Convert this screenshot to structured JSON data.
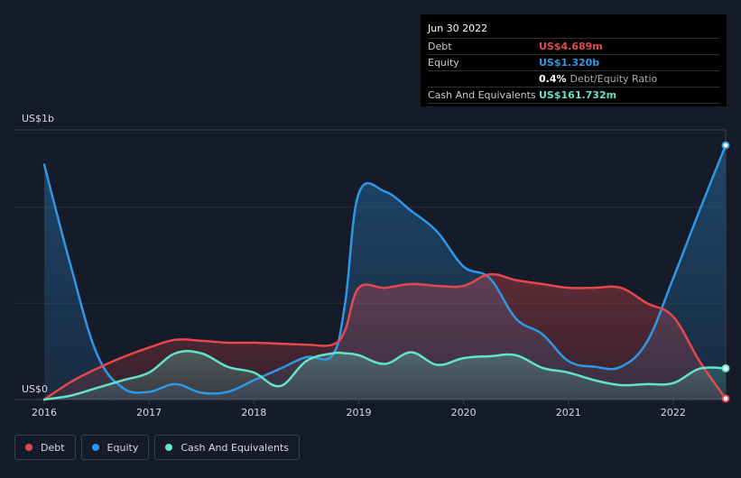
{
  "tooltip": {
    "date": "Jun 30 2022",
    "debt_label": "Debt",
    "debt_value": "US$4.689m",
    "equity_label": "Equity",
    "equity_value": "US$1.320b",
    "ratio_pct": "0.4%",
    "ratio_label": "Debt/Equity Ratio",
    "cash_label": "Cash And Equivalents",
    "cash_value": "US$161.732m"
  },
  "legend": {
    "debt": "Debt",
    "equity": "Equity",
    "cash": "Cash And Equivalents"
  },
  "colors": {
    "debt": "#e4484e",
    "equity": "#2f97e6",
    "cash": "#63e3c7",
    "background": "#151b28"
  },
  "chart_data": {
    "type": "area",
    "y_axis_top_label": "US$1b",
    "y_axis_bottom_label": "US$0",
    "ylim": [
      0,
      1.4
    ],
    "xlim": [
      2016,
      2022.5
    ],
    "x_ticks": [
      "2016",
      "2017",
      "2018",
      "2019",
      "2020",
      "2021",
      "2022"
    ],
    "grid": true,
    "legend_position": "bottom-left",
    "series": [
      {
        "name": "Debt",
        "x": [
          2016,
          2016.25,
          2016.5,
          2016.75,
          2017,
          2017.25,
          2017.5,
          2017.75,
          2018,
          2018.25,
          2018.5,
          2018.75,
          2018.87,
          2019,
          2019.25,
          2019.5,
          2019.75,
          2020,
          2020.25,
          2020.5,
          2020.75,
          2021,
          2021.25,
          2021.5,
          2021.75,
          2022,
          2022.25,
          2022.5
        ],
        "values": [
          0,
          0.09,
          0.16,
          0.22,
          0.27,
          0.31,
          0.305,
          0.295,
          0.295,
          0.29,
          0.285,
          0.285,
          0.36,
          0.58,
          0.58,
          0.6,
          0.59,
          0.59,
          0.65,
          0.62,
          0.6,
          0.58,
          0.58,
          0.58,
          0.5,
          0.43,
          0.2,
          0.005
        ]
      },
      {
        "name": "Equity",
        "x": [
          2016,
          2016.25,
          2016.5,
          2016.75,
          2017,
          2017.25,
          2017.5,
          2017.75,
          2018,
          2018.25,
          2018.5,
          2018.75,
          2018.87,
          2019,
          2019.25,
          2019.5,
          2019.75,
          2020,
          2020.25,
          2020.5,
          2020.75,
          2021,
          2021.25,
          2021.5,
          2021.75,
          2022,
          2022.25,
          2022.5
        ],
        "values": [
          1.22,
          0.7,
          0.24,
          0.06,
          0.04,
          0.08,
          0.035,
          0.04,
          0.1,
          0.16,
          0.22,
          0.23,
          0.5,
          1.07,
          1.08,
          0.98,
          0.87,
          0.69,
          0.63,
          0.42,
          0.34,
          0.2,
          0.17,
          0.17,
          0.3,
          0.63,
          0.98,
          1.32
        ]
      },
      {
        "name": "Cash And Equivalents",
        "x": [
          2016,
          2016.25,
          2016.5,
          2016.75,
          2017,
          2017.25,
          2017.5,
          2017.75,
          2018,
          2018.25,
          2018.5,
          2018.75,
          2018.87,
          2019,
          2019.25,
          2019.5,
          2019.75,
          2020,
          2020.25,
          2020.5,
          2020.75,
          2021,
          2021.25,
          2021.5,
          2021.75,
          2022,
          2022.25,
          2022.5
        ],
        "values": [
          0,
          0.02,
          0.06,
          0.1,
          0.14,
          0.24,
          0.24,
          0.17,
          0.14,
          0.07,
          0.2,
          0.24,
          0.24,
          0.23,
          0.185,
          0.245,
          0.18,
          0.215,
          0.225,
          0.23,
          0.165,
          0.14,
          0.1,
          0.075,
          0.08,
          0.085,
          0.16,
          0.162
        ]
      }
    ]
  }
}
